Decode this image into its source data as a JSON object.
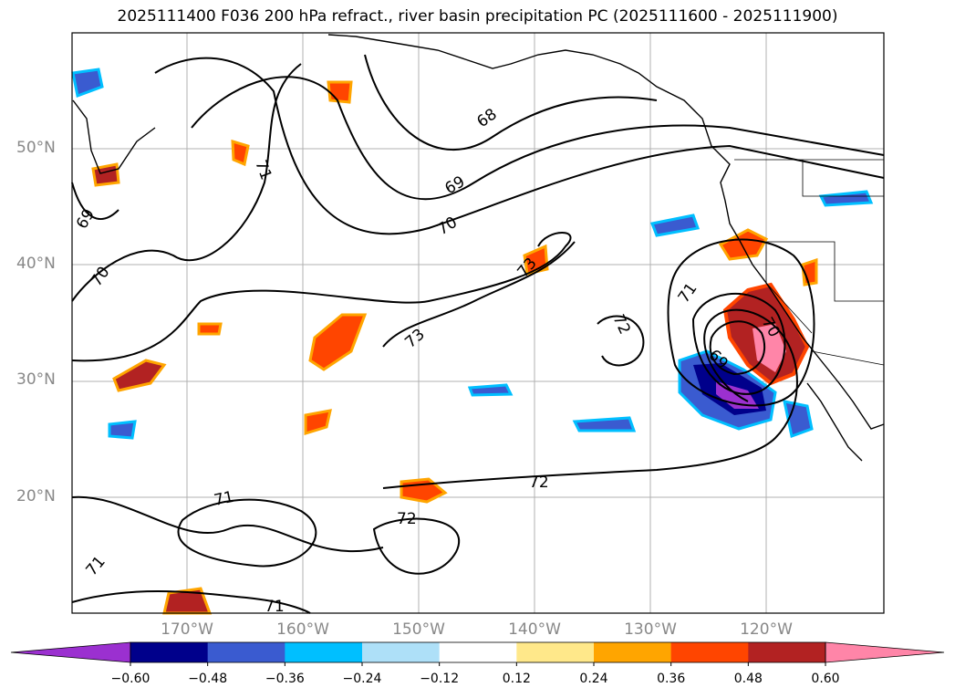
{
  "title": "2025111400 F036 200 hPa refract., river basin precipitation PC (2025111600 - 2025111900)",
  "lat_labels": [
    "50°N",
    "40°N",
    "30°N",
    "20°N"
  ],
  "lon_labels": [
    "170°W",
    "160°W",
    "150°W",
    "140°W",
    "130°W",
    "120°W"
  ],
  "contour_labels": [
    "68",
    "69",
    "69",
    "70",
    "70",
    "71",
    "71",
    "71",
    "71",
    "71",
    "72",
    "72",
    "72",
    "73",
    "73",
    "69",
    "70"
  ],
  "colorbar": {
    "ticks": [
      "−0.60",
      "−0.48",
      "−0.36",
      "−0.24",
      "−0.12",
      "0.12",
      "0.24",
      "0.36",
      "0.48",
      "0.60"
    ],
    "colors": [
      "#9b30d0",
      "#00008b",
      "#3a5bd0",
      "#00bfff",
      "#aee0f8",
      "#ffffff",
      "#ffe88a",
      "#ffa500",
      "#ff4500",
      "#b22222",
      "#ff85a8",
      "#ff85a8"
    ]
  },
  "colors": {
    "contour": "#000000",
    "coast": "#000000",
    "grid": "#b0b0b0",
    "axis_label": "#888888"
  }
}
